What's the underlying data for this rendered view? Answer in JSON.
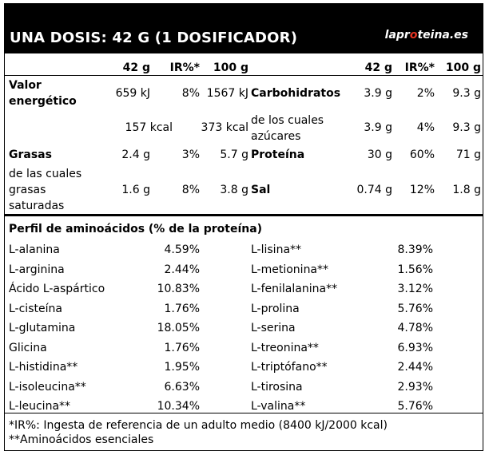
{
  "header": {
    "title": "UNA DOSIS: 42 G (1 DOSIFICADOR)",
    "brand_prefix": "lapr",
    "brand_accent": "o",
    "brand_suffix": "teina.es"
  },
  "columns": {
    "left": [
      "42 g",
      "IR%*",
      "100 g"
    ],
    "right": [
      "42 g",
      "IR%*",
      "100 g"
    ]
  },
  "nutrition_left": {
    "energy_label": "Valor energético",
    "energy_kj": [
      "659 kJ",
      "8%",
      "1567 kJ"
    ],
    "energy_kcal": [
      "157 kcal",
      "373 kcal"
    ],
    "fat_label": "Grasas",
    "fat": [
      "2.4 g",
      "3%",
      "5.7 g"
    ],
    "sat_label": "de las cuales grasas saturadas",
    "sat": [
      "1.6 g",
      "8%",
      "3.8 g"
    ]
  },
  "nutrition_right": {
    "carbs_label": "Carbohidratos",
    "carbs": [
      "3.9 g",
      "2%",
      "9.3 g"
    ],
    "sugars_label": "de los cuales azúcares",
    "sugars": [
      "3.9 g",
      "4%",
      "9.3 g"
    ],
    "protein_label": "Proteína",
    "protein": [
      "30 g",
      "60%",
      "71 g"
    ],
    "salt_label": "Sal",
    "salt": [
      "0.74 g",
      "12%",
      "1.8 g"
    ]
  },
  "amino": {
    "title": "Perfil de aminoácidos (% de la proteína)",
    "left": [
      {
        "name": "L-alanina",
        "value": "4.59%"
      },
      {
        "name": "L-arginina",
        "value": "2.44%"
      },
      {
        "name": "Ácido L-aspártico",
        "value": "10.83%"
      },
      {
        "name": "L-cisteína",
        "value": "1.76%"
      },
      {
        "name": "L-glutamina",
        "value": "18.05%"
      },
      {
        "name": "Glicina",
        "value": "1.76%"
      },
      {
        "name": "L-histidina**",
        "value": "1.95%"
      },
      {
        "name": "L-isoleucina**",
        "value": "6.63%"
      },
      {
        "name": "L-leucina**",
        "value": "10.34%"
      }
    ],
    "right": [
      {
        "name": "L-lisina**",
        "value": "8.39%"
      },
      {
        "name": "L-metionina**",
        "value": "1.56%"
      },
      {
        "name": "L-fenilalanina**",
        "value": "3.12%"
      },
      {
        "name": "L-prolina",
        "value": "5.76%"
      },
      {
        "name": "L-serina",
        "value": "4.78%"
      },
      {
        "name": "L-treonina**",
        "value": "6.93%"
      },
      {
        "name": "L-triptófano**",
        "value": "2.44%"
      },
      {
        "name": "L-tirosina",
        "value": "2.93%"
      },
      {
        "name": "L-valina**",
        "value": "5.76%"
      }
    ]
  },
  "footer": {
    "note1": "*IR%: Ingesta de referencia de un adulto medio (8400 kJ/2000 kcal)",
    "note2": "**Aminoácidos esenciales"
  }
}
